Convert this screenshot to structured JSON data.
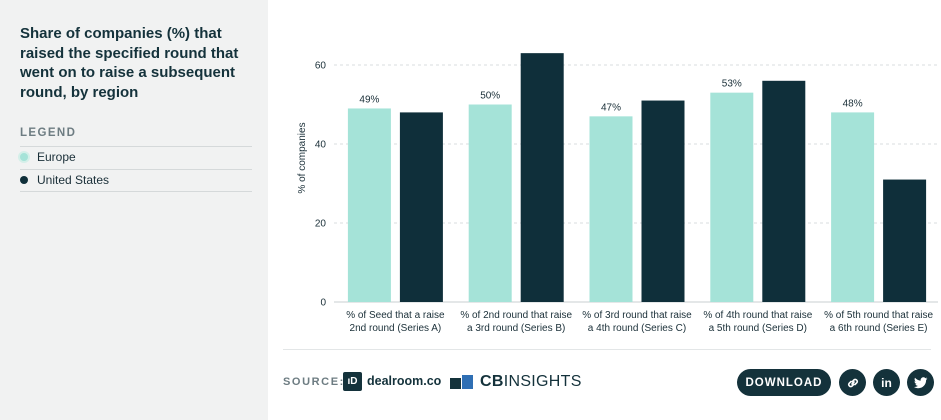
{
  "sidebar": {
    "title": "Share of companies (%) that raised the specified round that went on to raise a subsequent round, by region",
    "legend_heading": "LEGEND",
    "legend": [
      {
        "label": "Europe",
        "color": "#a5e3d8"
      },
      {
        "label": "United States",
        "color": "#0f2f3a"
      }
    ]
  },
  "chart_data": {
    "type": "bar",
    "title": "Share of companies (%) that raised the specified round that went on to raise a subsequent round, by region",
    "ylabel": "% of companies",
    "xlabel": "",
    "ylim": [
      0,
      67
    ],
    "yticks": [
      0,
      20,
      40,
      60
    ],
    "ytick_labels": [
      "0",
      "20",
      "40",
      "60"
    ],
    "grid": true,
    "categories": [
      [
        "% of Seed that a raise",
        "2nd round (Series A)"
      ],
      [
        "% of 2nd round that raise",
        "a 3rd round (Series B)"
      ],
      [
        "% of 3rd round that raise",
        "a 4th round (Series C)"
      ],
      [
        "% of 4th round that raise",
        "a 5th round (Series D)"
      ],
      [
        "% of 5th round that raise",
        "a 6th round (Series E)"
      ]
    ],
    "series": [
      {
        "name": "Europe",
        "color": "#a5e3d8",
        "values": [
          49,
          50,
          47,
          53,
          48
        ],
        "data_labels": [
          "49%",
          "50%",
          "47%",
          "53%",
          "48%"
        ]
      },
      {
        "name": "United States",
        "color": "#0f2f3a",
        "values": [
          48,
          63,
          51,
          56,
          31
        ]
      }
    ]
  },
  "footer": {
    "source_label": "SOURCE:",
    "dealroom_mark": "ıD",
    "dealroom_text": "dealroom.co",
    "cb_bold": "CB",
    "cb_rest": "INSIGHTS",
    "download_label": "DOWNLOAD",
    "link_icon": "link-icon",
    "linkedin_text": "in",
    "twitter_icon": "twitter-icon"
  }
}
